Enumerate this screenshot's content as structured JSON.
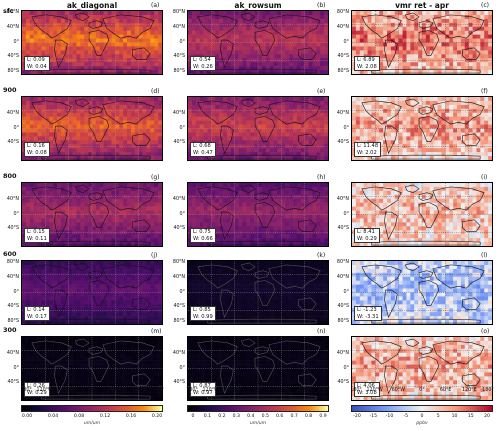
{
  "chart_data": {
    "type": "heatmap",
    "columns": [
      {
        "title": "ak_diagonal",
        "colormap": "inferno",
        "colorbar_ticks": [
          "0.00",
          "0.04",
          "0.08",
          "0.12",
          "0.16",
          "0.20"
        ],
        "colorbar_unit": "um/um"
      },
      {
        "title": "ak_rowsum",
        "colormap": "inferno",
        "colorbar_ticks": [
          "0",
          "0.1",
          "0.2",
          "0.3",
          "0.4",
          "0.5",
          "0.6",
          "0.7",
          "0.8",
          "0.9"
        ],
        "colorbar_unit": "um/um"
      },
      {
        "title": "vmr ret - apr",
        "colormap": "coolwarm",
        "colorbar_ticks": [
          "-20",
          "-15",
          "-10",
          "-5",
          "0",
          "5",
          "10",
          "15",
          "20"
        ],
        "colorbar_unit": "ppbv"
      }
    ],
    "rows": [
      "sfc",
      "900",
      "800",
      "600",
      "300"
    ],
    "panels": [
      {
        "letter": "(a)",
        "stats": [
          "L: 0.09",
          "W: 0.04"
        ],
        "intensity": 0.75
      },
      {
        "letter": "(b)",
        "stats": [
          "L: 0.54",
          "W: 0.26"
        ],
        "intensity": 0.55
      },
      {
        "letter": "(c)",
        "stats": [
          "L: 6.89",
          "W: 2.08"
        ],
        "intensity": 0.6
      },
      {
        "letter": "(d)",
        "stats": [
          "L: 0.16",
          "W: 0.08"
        ],
        "intensity": 0.7
      },
      {
        "letter": "(e)",
        "stats": [
          "L: 0.68",
          "W: 0.47"
        ],
        "intensity": 0.6
      },
      {
        "letter": "(f)",
        "stats": [
          "L: 11.48",
          "W: 2.02"
        ],
        "intensity": 0.45
      },
      {
        "letter": "(g)",
        "stats": [
          "L: 0.15",
          "W: 0.11"
        ],
        "intensity": 0.5
      },
      {
        "letter": "(h)",
        "stats": [
          "L: 0.75",
          "W: 0.66"
        ],
        "intensity": 0.45
      },
      {
        "letter": "(i)",
        "stats": [
          "L: 8.41",
          "W: 0.29"
        ],
        "intensity": 0.3
      },
      {
        "letter": "(j)",
        "stats": [
          "L: 0.14",
          "W: 0.17"
        ],
        "intensity": 0.3
      },
      {
        "letter": "(k)",
        "stats": [
          "L: 0.85",
          "W: 0.99"
        ],
        "intensity": 0.08
      },
      {
        "letter": "(l)",
        "stats": [
          "L: -1.23",
          "W: -3.31"
        ],
        "intensity": -0.3
      },
      {
        "letter": "(m)",
        "stats": [
          "L: 0.26",
          "W: 0.29"
        ],
        "intensity": 0.04
      },
      {
        "letter": "(n)",
        "stats": [
          "L: 0.87",
          "W: 0.97"
        ],
        "intensity": 0.04
      },
      {
        "letter": "(o)",
        "stats": [
          "L: 4.06",
          "W: 3.08"
        ],
        "intensity": 0.4
      }
    ],
    "lat_ticks": [
      "80°N",
      "40°N",
      "0°",
      "40°S",
      "80°S"
    ],
    "lon_ticks": [
      "180°",
      "120°W",
      "60°W",
      "0°",
      "60°E",
      "120°E",
      "180°"
    ]
  }
}
